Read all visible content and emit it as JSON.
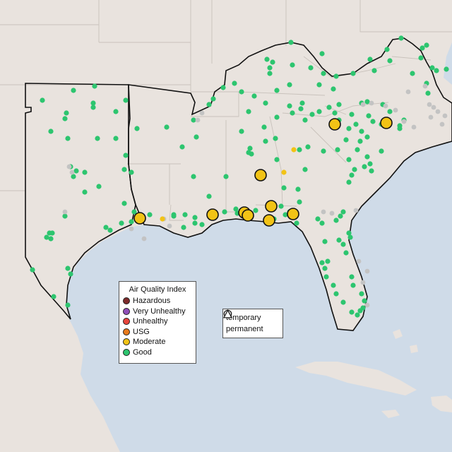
{
  "legend": {
    "title": "Air Quality Index",
    "categories": [
      {
        "label": "Hazardous",
        "color": "#7e2b2b"
      },
      {
        "label": "Very Unhealthy",
        "color": "#8f4fb8"
      },
      {
        "label": "Unhealthy",
        "color": "#e8453c"
      },
      {
        "label": "USG",
        "color": "#e87a1c"
      },
      {
        "label": "Moderate",
        "color": "#f2c316"
      },
      {
        "label": "Good",
        "color": "#2dc56f"
      }
    ]
  },
  "shape_legend": {
    "temporary_label": "temporary",
    "permanent_label": "permanent"
  },
  "colors": {
    "inactive_station": "#c3c3c3"
  }
}
